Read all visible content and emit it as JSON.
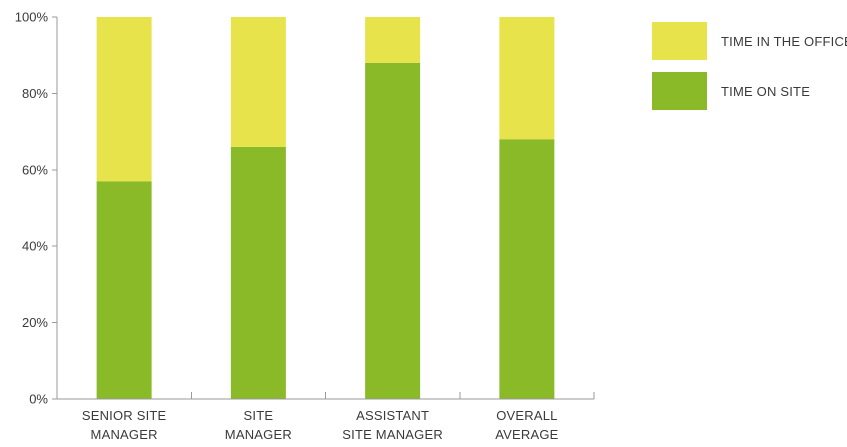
{
  "chart_data": {
    "type": "bar",
    "stacked": true,
    "categories": [
      [
        "SENIOR SITE",
        "MANAGER"
      ],
      [
        "SITE",
        "MANAGER"
      ],
      [
        "ASSISTANT",
        "SITE MANAGER"
      ],
      [
        "OVERALL",
        "AVERAGE"
      ]
    ],
    "series": [
      {
        "name": "TIME ON SITE",
        "values": [
          57,
          66,
          88,
          68
        ],
        "color": "#8aba27"
      },
      {
        "name": "TIME IN THE OFFICE",
        "values": [
          43,
          34,
          12,
          32
        ],
        "color": "#e7e34b"
      }
    ],
    "yticks": [
      "0%",
      "20%",
      "40%",
      "60%",
      "80%",
      "100%"
    ],
    "ylim": [
      0,
      100
    ],
    "legend": {
      "position": "right",
      "order": [
        "TIME IN THE OFFICE",
        "TIME ON SITE"
      ]
    },
    "grid": false
  }
}
